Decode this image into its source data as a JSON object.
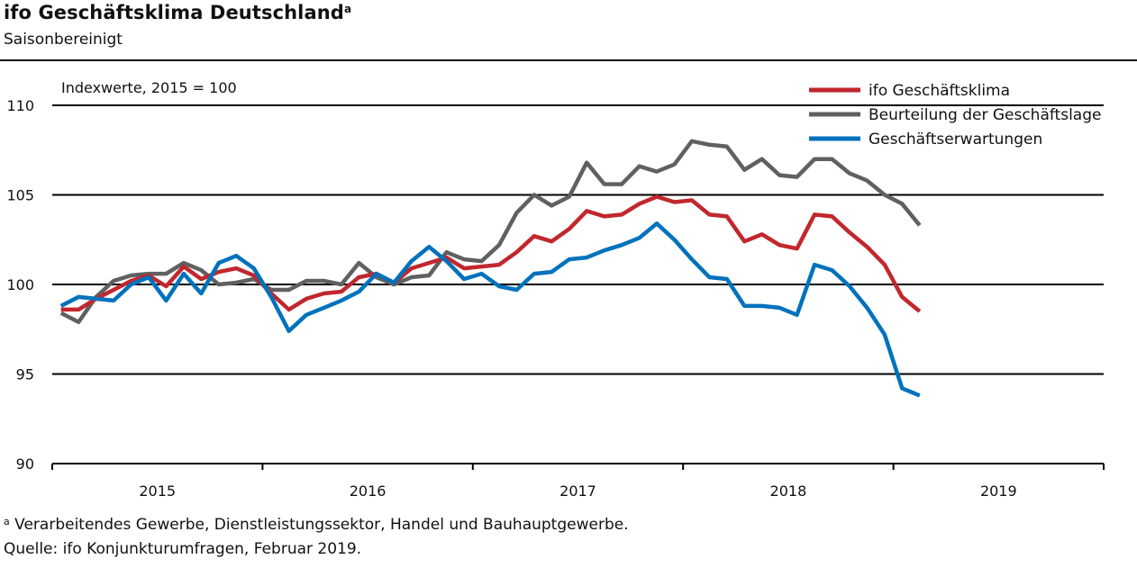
{
  "title": "ifo Geschäftsklima Deutschland",
  "title_marker": "a",
  "subtitle": "Saisonbereinigt",
  "footnote_marker": "a",
  "footnote": "Verarbeitendes Gewerbe, Dienstleistungssektor, Handel und Bauhauptgewerbe.",
  "source": "Quelle: ifo Konjunkturumfragen, Februar 2019.",
  "chart_data": {
    "type": "line",
    "annotation": "Indexwerte, 2015 = 100",
    "ylim": [
      90,
      110
    ],
    "yticks": [
      90,
      95,
      100,
      105,
      110
    ],
    "grid": true,
    "legend_position": "top-right",
    "x_categories": [
      "2015",
      "2016",
      "2017",
      "2018",
      "2019"
    ],
    "x": [
      "2015-01",
      "2015-02",
      "2015-03",
      "2015-04",
      "2015-05",
      "2015-06",
      "2015-07",
      "2015-08",
      "2015-09",
      "2015-10",
      "2015-11",
      "2015-12",
      "2016-01",
      "2016-02",
      "2016-03",
      "2016-04",
      "2016-05",
      "2016-06",
      "2016-07",
      "2016-08",
      "2016-09",
      "2016-10",
      "2016-11",
      "2016-12",
      "2017-01",
      "2017-02",
      "2017-03",
      "2017-04",
      "2017-05",
      "2017-06",
      "2017-07",
      "2017-08",
      "2017-09",
      "2017-10",
      "2017-11",
      "2017-12",
      "2018-01",
      "2018-02",
      "2018-03",
      "2018-04",
      "2018-05",
      "2018-06",
      "2018-07",
      "2018-08",
      "2018-09",
      "2018-10",
      "2018-11",
      "2018-12",
      "2019-01",
      "2019-02"
    ],
    "series": [
      {
        "name": "ifo Geschäftsklima",
        "color": "#c1272d",
        "values": [
          98.6,
          98.6,
          99.2,
          99.7,
          100.2,
          100.5,
          99.9,
          101.0,
          100.3,
          100.7,
          100.9,
          100.5,
          99.5,
          98.6,
          99.2,
          99.5,
          99.6,
          100.4,
          100.6,
          100.1,
          100.9,
          101.2,
          101.5,
          100.9,
          101.0,
          101.1,
          101.8,
          102.7,
          102.4,
          103.1,
          104.1,
          103.8,
          103.9,
          104.5,
          104.9,
          104.6,
          104.7,
          103.9,
          103.8,
          102.4,
          102.8,
          102.2,
          102.0,
          103.9,
          103.8,
          102.9,
          102.1,
          101.1,
          99.3,
          98.5
        ]
      },
      {
        "name": "Beurteilung der Geschäftslage",
        "color": "#606060",
        "values": [
          98.4,
          97.9,
          99.3,
          100.2,
          100.5,
          100.6,
          100.6,
          101.2,
          100.8,
          100.0,
          100.1,
          100.3,
          99.7,
          99.7,
          100.2,
          100.2,
          100.0,
          101.2,
          100.4,
          100.0,
          100.4,
          100.5,
          101.8,
          101.4,
          101.3,
          102.2,
          104.0,
          105.0,
          104.4,
          104.9,
          106.8,
          105.6,
          105.6,
          106.6,
          106.3,
          106.7,
          108.0,
          107.8,
          107.7,
          106.4,
          107.0,
          106.1,
          106.0,
          107.0,
          107.0,
          106.2,
          105.8,
          105.0,
          104.5,
          103.3
        ]
      },
      {
        "name": "Geschäftserwartungen",
        "color": "#0072bc",
        "values": [
          98.8,
          99.3,
          99.2,
          99.1,
          100.0,
          100.4,
          99.1,
          100.6,
          99.5,
          101.2,
          101.6,
          100.9,
          99.3,
          97.4,
          98.3,
          98.7,
          99.1,
          99.6,
          100.6,
          100.1,
          101.3,
          102.1,
          101.3,
          100.3,
          100.6,
          99.9,
          99.7,
          100.6,
          100.7,
          101.4,
          101.5,
          101.9,
          102.2,
          102.6,
          103.4,
          102.5,
          101.4,
          100.4,
          100.3,
          98.8,
          98.8,
          98.7,
          98.3,
          101.1,
          100.8,
          99.9,
          98.7,
          97.2,
          94.2,
          93.8
        ]
      }
    ]
  }
}
